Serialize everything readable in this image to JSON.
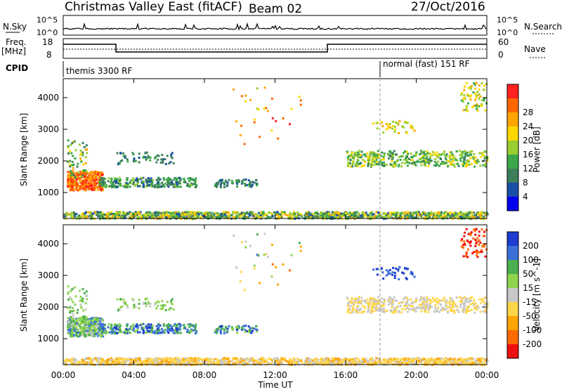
{
  "header": {
    "site": "Christmas Valley East (fitACF)",
    "beam": "Beam 02",
    "date": "27/Oct/2016"
  },
  "strips": {
    "nsky_label": "N.Sky",
    "nsky_ticks": [
      "10^5",
      "10^0"
    ],
    "nsearch_label": "N.Search",
    "nsearch_ticks": [
      "10^5",
      "10^0"
    ],
    "freq_label": "Freq.",
    "freq_unit": "[MHz]",
    "freq_ticks": [
      "18",
      "8"
    ],
    "nave_label": "Nave",
    "nave_ticks": [
      "60",
      "0"
    ],
    "cpid_label": "CPID",
    "cpid_left": "themis 3300 RF",
    "cpid_right": "normal (fast) 151 RF"
  },
  "colors": {
    "power": [
      "#0000ee",
      "#1a4fa8",
      "#3d7f5a",
      "#3aa84a",
      "#9acd32",
      "#ffd700",
      "#ffa500",
      "#ff6600",
      "#ff2020"
    ],
    "velocity": [
      "#1e3cd0",
      "#3b6fd8",
      "#4caf50",
      "#8fd44f",
      "#c8c8c8",
      "#ffd54a",
      "#ffa500",
      "#ff6a00",
      "#ee1010"
    ]
  },
  "chart_data": [
    {
      "type": "heatmap",
      "name": "power",
      "ylabel": "Slant Range [km]",
      "yticks": [
        "1000",
        "2000",
        "3000",
        "4000"
      ],
      "ylim": [
        180,
        4600
      ],
      "xlim": [
        0,
        24
      ],
      "colorbar_label": "Power [dB]",
      "colorbar_ticks": [
        "4",
        "8",
        "12",
        "16",
        "20",
        "24",
        "28"
      ],
      "colorbar_range": [
        0,
        30
      ]
    },
    {
      "type": "heatmap",
      "name": "velocity",
      "ylabel": "Slant Range [km]",
      "yticks": [
        "1000",
        "2000",
        "3000",
        "4000"
      ],
      "ylim": [
        180,
        4600
      ],
      "xlim": [
        0,
        24
      ],
      "xlabel": "Time UT",
      "xticks": [
        "00:00",
        "04:00",
        "08:00",
        "12:00",
        "16:00",
        "20:00",
        "00:00"
      ],
      "colorbar_label": "Velocity [m s^-1]",
      "colorbar_ticks": [
        "200",
        "100",
        "50",
        "15",
        "-15",
        "-50",
        "-100",
        "-200"
      ]
    }
  ]
}
